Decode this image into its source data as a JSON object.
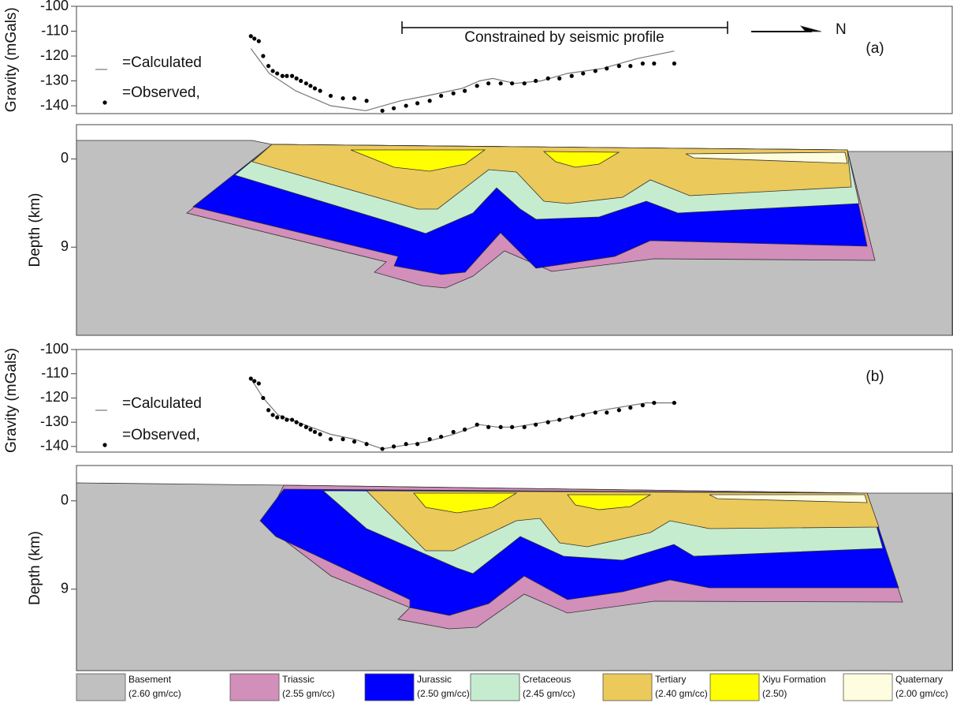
{
  "chart_data": [
    {
      "type": "line",
      "ylabel": "Gravity (mGals)",
      "ylim": [
        -143,
        -100
      ],
      "yticks": [
        -100,
        -110,
        -120,
        -130,
        -140
      ],
      "xlim": [
        0,
        100
      ],
      "annotations": [
        "Constrained by seismic profile",
        "N",
        "(a)"
      ],
      "series": [
        {
          "name": "=Calculated",
          "color": "#777777",
          "style": "line",
          "x": [
            19.9,
            22,
            25,
            29,
            33,
            37,
            40,
            44,
            46,
            47.5,
            50,
            53,
            56,
            60,
            64,
            68.2
          ],
          "values": [
            -117,
            -127,
            -134,
            -140,
            -142,
            -138,
            -136,
            -133,
            -130,
            -129,
            -131,
            -130,
            -127,
            -125,
            -121,
            -118
          ]
        },
        {
          "name": "=Observed,",
          "color": "#000000",
          "style": "points",
          "x": [
            19.9,
            20.3,
            20.8,
            21.3,
            21.9,
            22.4,
            22.9,
            23.5,
            24.0,
            24.6,
            25.1,
            25.6,
            26.2,
            26.7,
            27.2,
            27.8,
            29.0,
            30.4,
            31.7,
            33.1,
            34.9,
            36.2,
            37.6,
            38.9,
            40.3,
            41.6,
            43.0,
            44.3,
            45.7,
            47.0,
            48.4,
            49.7,
            51.1,
            52.4,
            53.8,
            55.1,
            56.5,
            57.8,
            59.2,
            60.5,
            61.9,
            63.2,
            64.6,
            65.9,
            68.2
          ],
          "values": [
            -112,
            -113,
            -114,
            -120,
            -124,
            -126,
            -127,
            -128,
            -128,
            -128,
            -129,
            -130,
            -131,
            -132,
            -133,
            -134,
            -136,
            -137,
            -137,
            -138,
            -142,
            -141,
            -140,
            -139,
            -138,
            -136,
            -135,
            -134,
            -132,
            -131,
            -131,
            -131,
            -131,
            -130,
            -129,
            -129,
            -128,
            -127,
            -126,
            -125,
            -124,
            -124,
            -123,
            -123,
            -123
          ]
        }
      ]
    },
    {
      "type": "section",
      "ylabel": "Depth (km)",
      "ylim": [
        -3.5,
        18
      ],
      "yticks": [
        0,
        9
      ]
    },
    {
      "type": "line",
      "ylabel": "Gravity (mGals)",
      "ylim": [
        -142,
        -100
      ],
      "yticks": [
        -100,
        -110,
        -120,
        -130,
        -140
      ],
      "xlim": [
        0,
        100
      ],
      "annotations": [
        "(b)"
      ],
      "series": [
        {
          "name": "=Calculated",
          "color": "#777777",
          "style": "line",
          "x": [
            19.9,
            21.3,
            23,
            26,
            29,
            31.7,
            34.9,
            40,
            43,
            46,
            48,
            50,
            55,
            60,
            65,
            68.2
          ],
          "values": [
            -112,
            -120,
            -127,
            -131,
            -135,
            -137,
            -141,
            -138,
            -135,
            -131,
            -132,
            -132,
            -129,
            -125,
            -122,
            -122
          ]
        },
        {
          "name": "=Observed,",
          "color": "#000000",
          "style": "points",
          "x": [
            19.9,
            20.3,
            20.8,
            21.3,
            21.9,
            22.4,
            22.9,
            23.5,
            24.0,
            24.6,
            25.1,
            25.6,
            26.2,
            26.7,
            27.2,
            27.8,
            29.0,
            30.4,
            31.7,
            33.1,
            34.9,
            36.2,
            37.6,
            38.9,
            40.3,
            41.6,
            43.0,
            44.3,
            45.7,
            47.0,
            48.4,
            49.7,
            51.1,
            52.4,
            53.8,
            55.1,
            56.5,
            57.8,
            59.2,
            60.5,
            61.9,
            63.2,
            64.6,
            65.9,
            68.2
          ],
          "values": [
            -112,
            -113,
            -114,
            -120,
            -125,
            -127,
            -128,
            -128,
            -129,
            -129,
            -130,
            -131,
            -132,
            -133,
            -134,
            -135,
            -137,
            -137,
            -138,
            -139,
            -141,
            -140,
            -139,
            -139,
            -137,
            -136,
            -134,
            -133,
            -131,
            -132,
            -132,
            -132,
            -132,
            -131,
            -130,
            -129,
            -128,
            -127,
            -126,
            -126,
            -125,
            -124,
            -123,
            -122,
            -122
          ]
        }
      ]
    },
    {
      "type": "section",
      "ylabel": "Depth (km)",
      "ylim": [
        -3.6,
        17.3
      ],
      "yticks": [
        0,
        9
      ]
    }
  ],
  "legend": [
    {
      "name": "Basement",
      "density": "(2.60 gm/cc)",
      "color": "#c0c0c0"
    },
    {
      "name": "Triassic",
      "density": "(2.55 gm/cc)",
      "color": "#d18fba"
    },
    {
      "name": "Jurassic",
      "density": "(2.50 gm/cc)",
      "color": "#0000ff"
    },
    {
      "name": "Cretaceous",
      "density": "(2.45 gm/cc)",
      "color": "#c6ecd0"
    },
    {
      "name": "Tertiary",
      "density": "(2.40 gm/cc)",
      "color": "#ebc95a"
    },
    {
      "name": "Xiyu Formation",
      "density": "(2.50)",
      "color": "#ffff00"
    },
    {
      "name": "Quaternary",
      "density": "(2.00 gm/cc)",
      "color": "#fffde0"
    }
  ]
}
